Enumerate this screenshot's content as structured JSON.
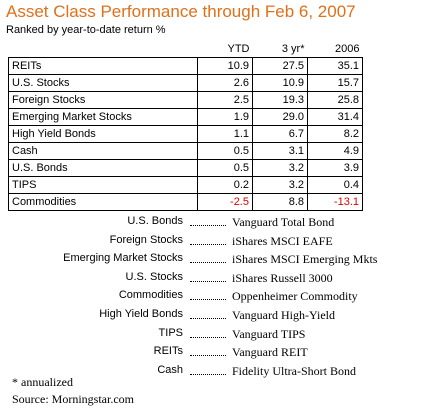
{
  "header": {
    "title": "Asset Class Performance through Feb 6, 2007",
    "subtitle": "Ranked by year-to-date return %"
  },
  "table": {
    "columns": [
      "YTD",
      "3 yr*",
      "2006"
    ],
    "rows": [
      [
        "REITs",
        "10.9",
        "27.5",
        "35.1"
      ],
      [
        "U.S. Stocks",
        "2.6",
        "10.9",
        "15.7"
      ],
      [
        "Foreign Stocks",
        "2.5",
        "19.3",
        "25.8"
      ],
      [
        "Emerging Market Stocks",
        "1.9",
        "29.0",
        "31.4"
      ],
      [
        "High Yield Bonds",
        "1.1",
        "6.7",
        "8.2"
      ],
      [
        "Cash",
        "0.5",
        "3.1",
        "4.9"
      ],
      [
        "U.S. Bonds",
        "0.5",
        "3.2",
        "3.9"
      ],
      [
        "TIPS",
        "0.2",
        "3.2",
        "0.4"
      ],
      [
        "Commodities",
        "-2.5",
        "8.8",
        "-13.1"
      ]
    ]
  },
  "funds": [
    [
      "U.S. Bonds",
      "Vanguard Total Bond"
    ],
    [
      "Foreign Stocks",
      "iShares MSCI EAFE"
    ],
    [
      "Emerging Market Stocks",
      "iShares MSCI Emerging Mkts"
    ],
    [
      "U.S. Stocks",
      "iShares Russell 3000"
    ],
    [
      "Commodities",
      "Oppenheimer Commodity"
    ],
    [
      "High Yield Bonds",
      "Vanguard High-Yield"
    ],
    [
      "TIPS",
      "Vanguard TIPS"
    ],
    [
      "REITs",
      "Vanguard REIT"
    ],
    [
      "Cash",
      "Fidelity Ultra-Short Bond"
    ]
  ],
  "footnotes": [
    "* annualized",
    "Source: Morningstar.com"
  ]
}
